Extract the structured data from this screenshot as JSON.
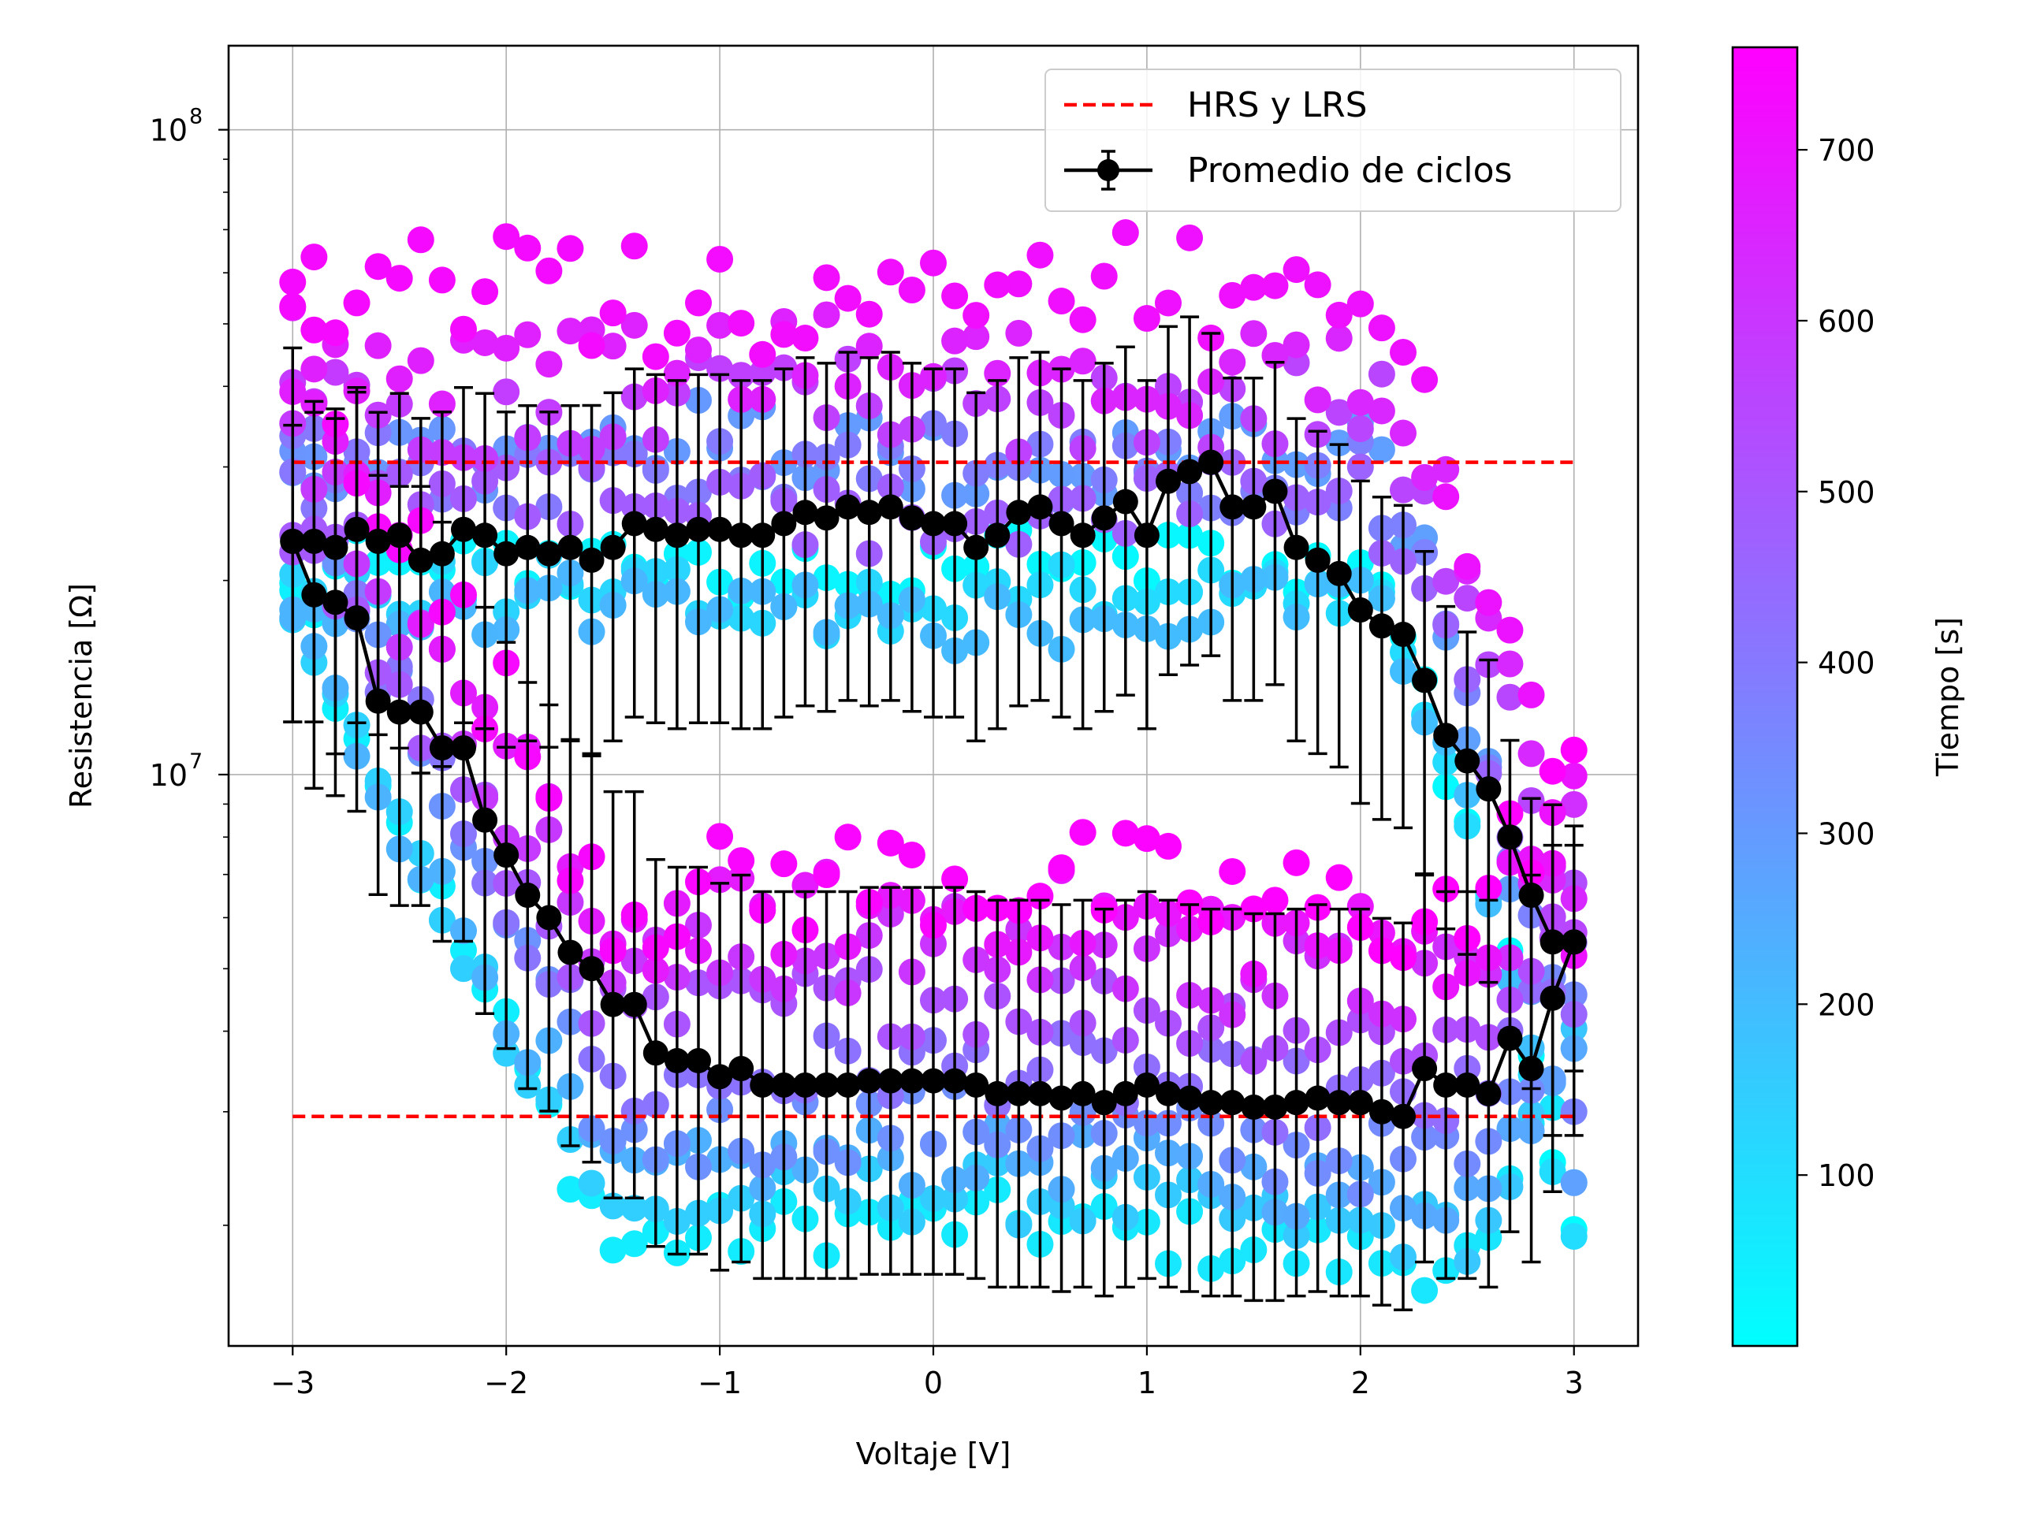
{
  "chart_data": {
    "type": "scatter",
    "xlabel": "Voltaje [V]",
    "ylabel": "Resistencia [Ω]",
    "xlim": [
      -3.3,
      3.3
    ],
    "ylim": [
      1300000,
      135000000
    ],
    "y_scale": "log",
    "grid": true,
    "x_ticks": [
      {
        "value": -3,
        "label": "−3"
      },
      {
        "value": -2,
        "label": "−2"
      },
      {
        "value": -1,
        "label": "−1"
      },
      {
        "value": 0,
        "label": "0"
      },
      {
        "value": 1,
        "label": "1"
      },
      {
        "value": 2,
        "label": "2"
      },
      {
        "value": 3,
        "label": "3"
      }
    ],
    "y_ticks": [
      {
        "value": 10000000,
        "base": "10",
        "exp": "7"
      },
      {
        "value": 100000000,
        "base": "10",
        "exp": "8"
      }
    ],
    "legend": {
      "position": "top-right",
      "entries": [
        {
          "label": "HRS y LRS",
          "style": "dashed",
          "color": "#ff0000"
        },
        {
          "label": "Promedio de ciclos",
          "style": "line-errorbar-marker",
          "color": "#000000"
        }
      ]
    },
    "colorbar": {
      "label": "Tiempo [s]",
      "range": [
        0,
        760
      ],
      "colormap": "cool",
      "ticks": [
        {
          "value": 100,
          "label": "100"
        },
        {
          "value": 200,
          "label": "200"
        },
        {
          "value": 300,
          "label": "300"
        },
        {
          "value": 400,
          "label": "400"
        },
        {
          "value": 500,
          "label": "500"
        },
        {
          "value": 600,
          "label": "600"
        },
        {
          "value": 700,
          "label": "700"
        }
      ]
    },
    "reference_lines": [
      {
        "name": "HRS",
        "y": 30500000,
        "x_range": [
          -3,
          3
        ],
        "color": "#ff0000"
      },
      {
        "name": "LRS",
        "y": 2950000,
        "x_range": [
          -3,
          3
        ],
        "color": "#ff0000"
      }
    ],
    "scatter_cycles": [
      {
        "time_start": 10,
        "time_end": 80,
        "hrs": 21000000,
        "lrs": 1900000,
        "spread": 0.05
      },
      {
        "time_start": 100,
        "time_end": 170,
        "hrs": 19000000,
        "lrs": 2100000,
        "spread": 0.05
      },
      {
        "time_start": 190,
        "time_end": 260,
        "hrs": 18000000,
        "lrs": 2400000,
        "spread": 0.05
      },
      {
        "time_start": 280,
        "time_end": 350,
        "hrs": 32000000,
        "lrs": 2700000,
        "spread": 0.06
      },
      {
        "time_start": 370,
        "time_end": 440,
        "hrs": 30000000,
        "lrs": 3300000,
        "spread": 0.06
      },
      {
        "time_start": 460,
        "time_end": 530,
        "hrs": 26000000,
        "lrs": 4200000,
        "spread": 0.06
      },
      {
        "time_start": 550,
        "time_end": 620,
        "hrs": 38000000,
        "lrs": 5000000,
        "spread": 0.07
      },
      {
        "time_start": 640,
        "time_end": 700,
        "hrs": 44000000,
        "lrs": 5800000,
        "spread": 0.07
      },
      {
        "time_start": 705,
        "time_end": 760,
        "hrs": 55000000,
        "lrs": 6500000,
        "spread": 0.09
      }
    ],
    "average_upper": {
      "x": [
        -3.0,
        -2.9,
        -2.8,
        -2.7,
        -2.6,
        -2.5,
        -2.4,
        -2.3,
        -2.2,
        -2.1,
        -2.0,
        -1.9,
        -1.8,
        -1.7,
        -1.6,
        -1.5,
        -1.4,
        -1.3,
        -1.2,
        -1.1,
        -1.0,
        -0.9,
        -0.8,
        -0.7,
        -0.6,
        -0.5,
        -0.4,
        -0.3,
        -0.2,
        -0.1,
        0.0,
        0.1,
        0.2,
        0.3,
        0.4,
        0.5,
        0.6,
        0.7,
        0.8,
        0.9,
        1.0,
        1.1,
        1.2,
        1.3,
        1.4,
        1.5,
        1.6,
        1.7,
        1.8,
        1.9,
        2.0,
        2.1,
        2.2,
        2.3,
        2.4,
        2.5,
        2.6,
        2.7,
        2.8,
        2.9,
        3.0
      ],
      "y": [
        23000000,
        23000000,
        22500000,
        24000000,
        23000000,
        23500000,
        21500000,
        22000000,
        24000000,
        23500000,
        22000000,
        22500000,
        22000000,
        22500000,
        21500000,
        22500000,
        24500000,
        24000000,
        23500000,
        24000000,
        24000000,
        23500000,
        23500000,
        24500000,
        25500000,
        25000000,
        26000000,
        25500000,
        26000000,
        25000000,
        24500000,
        24500000,
        22500000,
        23500000,
        25500000,
        26000000,
        24500000,
        23500000,
        25000000,
        26500000,
        23500000,
        28500000,
        29500000,
        30500000,
        26000000,
        26000000,
        27500000,
        22500000,
        21500000,
        20500000,
        18000000,
        17000000,
        16500000,
        14000000,
        11500000,
        10500000,
        9500000,
        8000000,
        6500000,
        5500000,
        5500000
      ],
      "err_up": [
        0.18,
        0.2,
        0.2,
        0.22,
        0.2,
        0.22,
        0.22,
        0.22,
        0.22,
        0.22,
        0.22,
        0.22,
        0.22,
        0.22,
        0.24,
        0.24,
        0.24,
        0.24,
        0.24,
        0.24,
        0.24,
        0.24,
        0.24,
        0.24,
        0.24,
        0.24,
        0.24,
        0.24,
        0.24,
        0.24,
        0.24,
        0.24,
        0.24,
        0.24,
        0.24,
        0.24,
        0.24,
        0.24,
        0.24,
        0.24,
        0.24,
        0.24,
        0.24,
        0.2,
        0.2,
        0.2,
        0.2,
        0.2,
        0.2,
        0.2,
        0.2,
        0.2,
        0.2,
        0.2,
        0.2,
        0.2,
        0.2,
        0.15,
        0.15,
        0.15,
        0.15
      ],
      "err_down": [
        0.28,
        0.28,
        0.32,
        0.3,
        0.3,
        0.33,
        0.33,
        0.33,
        0.3,
        0.3,
        0.3,
        0.3,
        0.3,
        0.3,
        0.3,
        0.3,
        0.3,
        0.3,
        0.3,
        0.3,
        0.3,
        0.3,
        0.3,
        0.3,
        0.3,
        0.3,
        0.3,
        0.3,
        0.3,
        0.3,
        0.3,
        0.3,
        0.3,
        0.3,
        0.3,
        0.3,
        0.3,
        0.3,
        0.3,
        0.3,
        0.3,
        0.3,
        0.3,
        0.3,
        0.3,
        0.3,
        0.3,
        0.3,
        0.3,
        0.3,
        0.3,
        0.3,
        0.3,
        0.3,
        0.3,
        0.3,
        0.3,
        0.3,
        0.3,
        0.3,
        0.3
      ]
    },
    "average_lower": {
      "x": [
        -3.0,
        -2.9,
        -2.8,
        -2.7,
        -2.6,
        -2.5,
        -2.4,
        -2.3,
        -2.2,
        -2.1,
        -2.0,
        -1.9,
        -1.8,
        -1.7,
        -1.6,
        -1.5,
        -1.4,
        -1.3,
        -1.2,
        -1.1,
        -1.0,
        -0.9,
        -0.8,
        -0.7,
        -0.6,
        -0.5,
        -0.4,
        -0.3,
        -0.2,
        -0.1,
        0.0,
        0.1,
        0.2,
        0.3,
        0.4,
        0.5,
        0.6,
        0.7,
        0.8,
        0.9,
        1.0,
        1.1,
        1.2,
        1.3,
        1.4,
        1.5,
        1.6,
        1.7,
        1.8,
        1.9,
        2.0,
        2.1,
        2.2,
        2.3,
        2.4,
        2.5,
        2.6,
        2.7,
        2.8,
        2.9,
        3.0
      ],
      "y": [
        23000000,
        19000000,
        18500000,
        17500000,
        13000000,
        12500000,
        12500000,
        11000000,
        11000000,
        8500000,
        7500000,
        6500000,
        6000000,
        5300000,
        5000000,
        4400000,
        4400000,
        3700000,
        3600000,
        3600000,
        3400000,
        3500000,
        3300000,
        3300000,
        3300000,
        3300000,
        3300000,
        3350000,
        3350000,
        3350000,
        3350000,
        3350000,
        3300000,
        3200000,
        3200000,
        3200000,
        3150000,
        3200000,
        3100000,
        3200000,
        3300000,
        3200000,
        3150000,
        3100000,
        3100000,
        3050000,
        3050000,
        3100000,
        3150000,
        3100000,
        3100000,
        3000000,
        2950000,
        3500000,
        3300000,
        3300000,
        3200000,
        3900000,
        3500000,
        4500000,
        5500000
      ],
      "err_up": [
        0.3,
        0.3,
        0.3,
        0.35,
        0.35,
        0.35,
        0.35,
        0.35,
        0.33,
        0.33,
        0.33,
        0.33,
        0.33,
        0.33,
        0.33,
        0.33,
        0.33,
        0.3,
        0.3,
        0.3,
        0.3,
        0.3,
        0.3,
        0.3,
        0.3,
        0.3,
        0.3,
        0.3,
        0.3,
        0.3,
        0.3,
        0.3,
        0.3,
        0.3,
        0.3,
        0.3,
        0.3,
        0.3,
        0.3,
        0.3,
        0.3,
        0.3,
        0.3,
        0.3,
        0.3,
        0.3,
        0.3,
        0.3,
        0.3,
        0.3,
        0.3,
        0.3,
        0.3,
        0.3,
        0.3,
        0.3,
        0.3,
        0.3,
        0.3,
        0.3,
        0.18
      ],
      "err_down": [
        0.28,
        0.3,
        0.3,
        0.3,
        0.3,
        0.3,
        0.3,
        0.3,
        0.3,
        0.3,
        0.3,
        0.3,
        0.3,
        0.3,
        0.3,
        0.3,
        0.3,
        0.3,
        0.3,
        0.3,
        0.3,
        0.3,
        0.3,
        0.3,
        0.3,
        0.3,
        0.3,
        0.3,
        0.3,
        0.3,
        0.3,
        0.3,
        0.3,
        0.3,
        0.3,
        0.3,
        0.3,
        0.3,
        0.3,
        0.3,
        0.3,
        0.3,
        0.3,
        0.3,
        0.3,
        0.3,
        0.3,
        0.3,
        0.3,
        0.3,
        0.3,
        0.3,
        0.3,
        0.3,
        0.3,
        0.3,
        0.3,
        0.3,
        0.3,
        0.3,
        0.2
      ]
    }
  }
}
